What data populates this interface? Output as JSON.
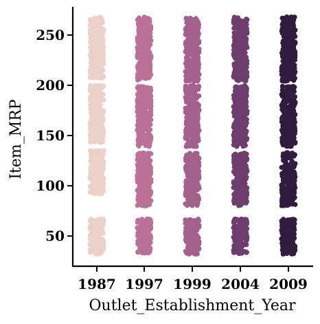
{
  "chart_data": {
    "type": "scatter",
    "subtype": "strip",
    "xlabel": "Outlet_Establishment_Year",
    "ylabel": "Item_MRP",
    "categories": [
      "1987",
      "1997",
      "1999",
      "2004",
      "2009"
    ],
    "yticks": [
      50,
      100,
      150,
      200,
      250
    ],
    "ylim": [
      20,
      278
    ],
    "grid": false,
    "legend": "none",
    "colors": [
      "#ecd1c9",
      "#bb7096",
      "#a3618c",
      "#6d3d6e",
      "#2f1c3f"
    ],
    "series": [
      {
        "category": "1987",
        "value_ranges": [
          [
            32,
            67
          ],
          [
            92,
            135
          ],
          [
            143,
            200
          ],
          [
            207,
            268
          ]
        ],
        "approx_points": 930
      },
      {
        "category": "1997",
        "value_ranges": [
          [
            32,
            67
          ],
          [
            80,
            133
          ],
          [
            139,
            199
          ],
          [
            205,
            268
          ]
        ],
        "approx_points": 930
      },
      {
        "category": "1999",
        "value_ranges": [
          [
            32,
            67
          ],
          [
            80,
            133
          ],
          [
            139,
            200
          ],
          [
            204,
            267
          ]
        ],
        "approx_points": 930
      },
      {
        "category": "2004",
        "value_ranges": [
          [
            32,
            67
          ],
          [
            80,
            133
          ],
          [
            139,
            200
          ],
          [
            204,
            268
          ]
        ],
        "approx_points": 930
      },
      {
        "category": "2009",
        "value_ranges": [
          [
            32,
            67
          ],
          [
            80,
            133
          ],
          [
            139,
            199
          ],
          [
            204,
            268
          ]
        ],
        "approx_points": 930
      }
    ]
  }
}
